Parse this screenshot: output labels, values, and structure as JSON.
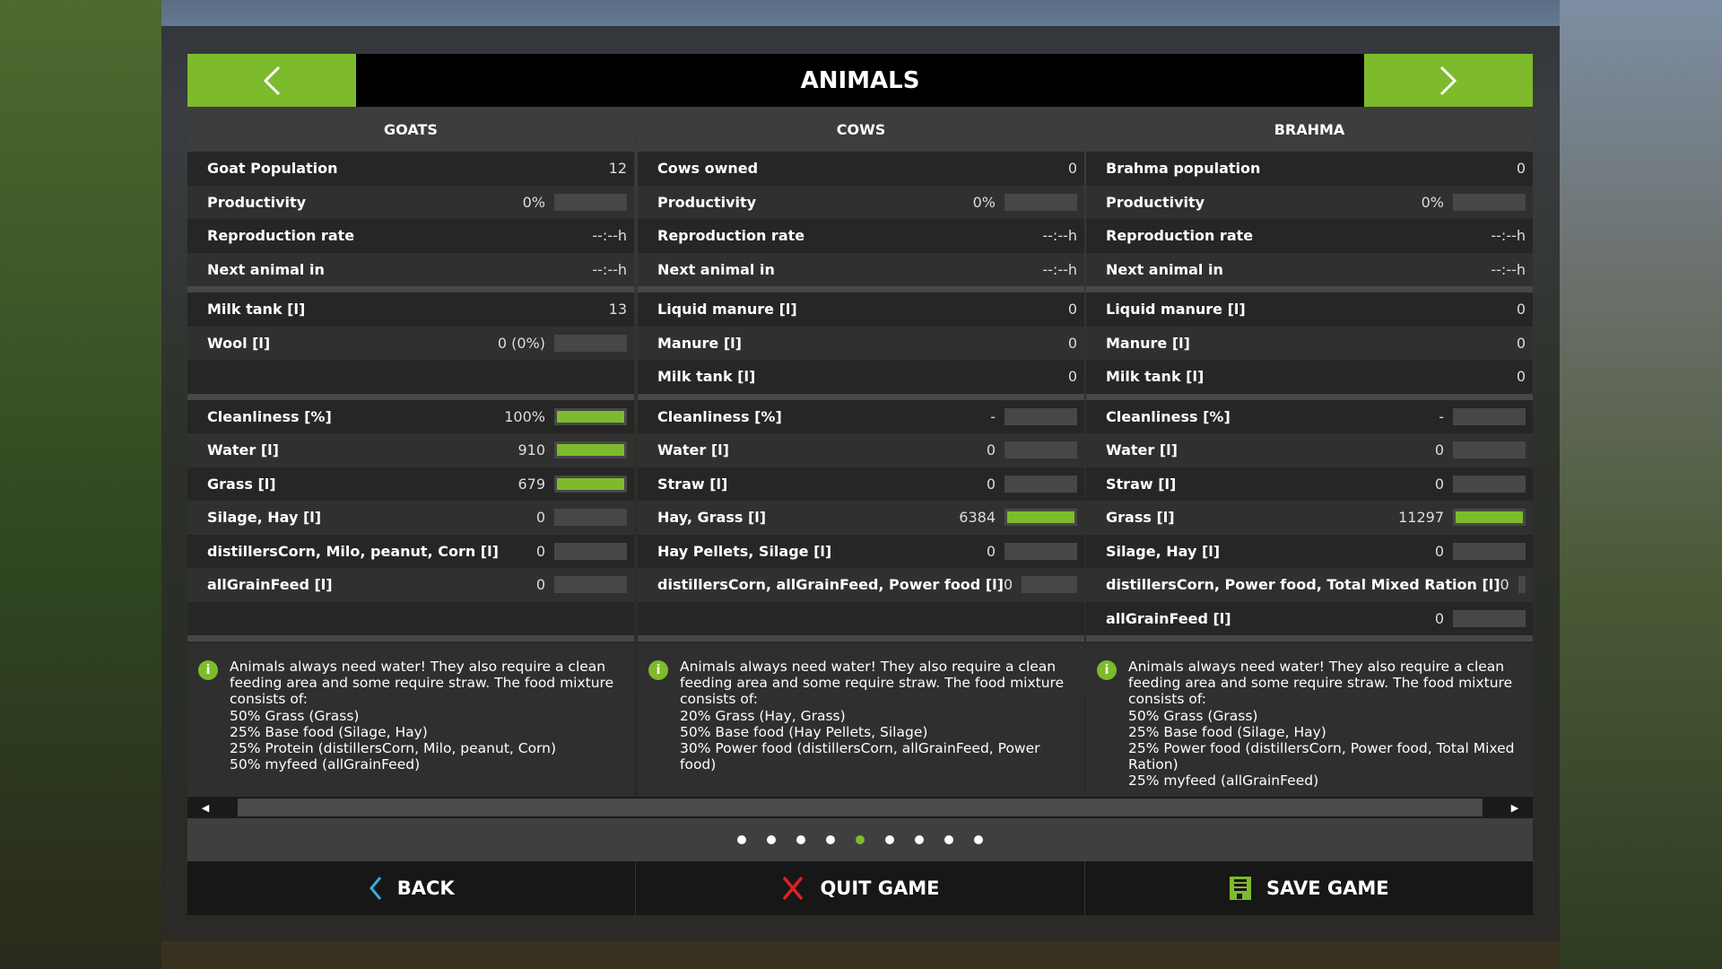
{
  "title": "ANIMALS",
  "colors": {
    "accent": "#7dbb2c",
    "header": "#000000"
  },
  "columns": [
    {
      "name": "GOATS",
      "sections": [
        [
          {
            "label": "Goat Population",
            "value": "12"
          },
          {
            "label": "Productivity",
            "value": "0%",
            "bar": 0
          },
          {
            "label": "Reproduction rate",
            "value": "--:--h"
          },
          {
            "label": "Next animal in",
            "value": "--:--h"
          }
        ],
        [
          {
            "label": "Milk tank [l]",
            "value": "13"
          },
          {
            "label": "Wool [l]",
            "value": "0 (0%)",
            "bar": 0
          },
          {
            "label": "",
            "value": ""
          }
        ],
        [
          {
            "label": "Cleanliness [%]",
            "value": "100%",
            "bar": 1
          },
          {
            "label": "Water [l]",
            "value": "910",
            "bar": 1
          },
          {
            "label": "Grass [l]",
            "value": "679",
            "bar": 1
          },
          {
            "label": "Silage, Hay [l]",
            "value": "0",
            "bar": 0
          },
          {
            "label": "distillersCorn, Milo, peanut, Corn [l]",
            "value": "0",
            "bar": 0
          },
          {
            "label": "allGrainFeed [l]",
            "value": "0",
            "bar": 0
          },
          {
            "label": "",
            "value": ""
          }
        ]
      ],
      "info": [
        "Animals always need water! They also require a clean feeding area and some require straw. The food mixture consists of:",
        "50% Grass (Grass)",
        "25% Base food (Silage, Hay)",
        "25% Protein (distillersCorn, Milo, peanut, Corn)",
        "50% myfeed (allGrainFeed)"
      ]
    },
    {
      "name": "COWS",
      "sections": [
        [
          {
            "label": "Cows owned",
            "value": "0"
          },
          {
            "label": "Productivity",
            "value": "0%",
            "bar": 0
          },
          {
            "label": "Reproduction rate",
            "value": "--:--h"
          },
          {
            "label": "Next animal in",
            "value": "--:--h"
          }
        ],
        [
          {
            "label": "Liquid manure [l]",
            "value": "0"
          },
          {
            "label": "Manure [l]",
            "value": "0"
          },
          {
            "label": "Milk tank [l]",
            "value": "0"
          }
        ],
        [
          {
            "label": "Cleanliness [%]",
            "value": "-",
            "bar": 0
          },
          {
            "label": "Water [l]",
            "value": "0",
            "bar": 0
          },
          {
            "label": "Straw [l]",
            "value": "0",
            "bar": 0
          },
          {
            "label": "Hay, Grass [l]",
            "value": "6384",
            "bar": 1
          },
          {
            "label": "Hay Pellets, Silage [l]",
            "value": "0",
            "bar": 0
          },
          {
            "label": "distillersCorn, allGrainFeed, Power food [l]",
            "value": "0",
            "bar": 0
          },
          {
            "label": "",
            "value": ""
          }
        ]
      ],
      "info": [
        "Animals always need water! They also require a clean feeding area and some require straw. The food mixture consists of:",
        "20% Grass (Hay, Grass)",
        "50% Base food (Hay Pellets, Silage)",
        "30% Power food (distillersCorn, allGrainFeed, Power food)"
      ]
    },
    {
      "name": "BRAHMA",
      "sections": [
        [
          {
            "label": "Brahma population",
            "value": "0"
          },
          {
            "label": "Productivity",
            "value": "0%",
            "bar": 0
          },
          {
            "label": "Reproduction rate",
            "value": "--:--h"
          },
          {
            "label": "Next animal in",
            "value": "--:--h"
          }
        ],
        [
          {
            "label": "Liquid manure [l]",
            "value": "0"
          },
          {
            "label": "Manure [l]",
            "value": "0"
          },
          {
            "label": "Milk tank [l]",
            "value": "0"
          }
        ],
        [
          {
            "label": "Cleanliness [%]",
            "value": "-",
            "bar": 0
          },
          {
            "label": "Water [l]",
            "value": "0",
            "bar": 0
          },
          {
            "label": "Straw [l]",
            "value": "0",
            "bar": 0
          },
          {
            "label": "Grass [l]",
            "value": "11297",
            "bar": 1
          },
          {
            "label": "Silage, Hay [l]",
            "value": "0",
            "bar": 0
          },
          {
            "label": "distillersCorn, Power food, Total Mixed Ration [l]",
            "value": "0",
            "bar": 0
          },
          {
            "label": "allGrainFeed [l]",
            "value": "0",
            "bar": 0
          }
        ]
      ],
      "info": [
        "Animals always need water! They also require a clean feeding area and some require straw. The food mixture consists of:",
        "50% Grass (Grass)",
        "25% Base food (Silage, Hay)",
        "25% Power food (distillersCorn, Power food, Total Mixed Ration)",
        "25% myfeed (allGrainFeed)"
      ]
    }
  ],
  "scroll": {
    "thumb_start": 0.9,
    "thumb_end": 1.0
  },
  "pages": {
    "count": 9,
    "current": 5
  },
  "buttons": {
    "back": "BACK",
    "quit": "QUIT GAME",
    "save": "SAVE GAME"
  }
}
